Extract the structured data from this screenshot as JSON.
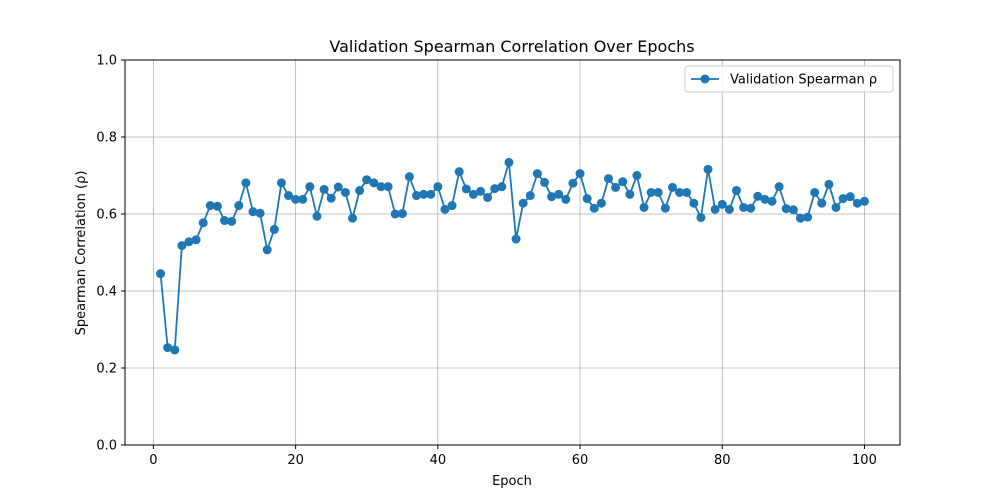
{
  "chart_data": {
    "type": "line",
    "title": "Validation Spearman Correlation Over Epochs",
    "xlabel": "Epoch",
    "ylabel": "Spearman Correlation (ρ)",
    "xlim": [
      -4,
      105
    ],
    "ylim": [
      0.0,
      1.0
    ],
    "x_ticks": [
      0,
      20,
      40,
      60,
      80,
      100
    ],
    "x_tick_labels": [
      "0",
      "20",
      "40",
      "60",
      "80",
      "100"
    ],
    "y_ticks": [
      0.0,
      0.2,
      0.4,
      0.6,
      0.8,
      1.0
    ],
    "y_tick_labels": [
      "0.0",
      "0.2",
      "0.4",
      "0.6",
      "0.8",
      "1.0"
    ],
    "grid": true,
    "legend_position": "top-right",
    "series": [
      {
        "name": "Validation Spearman ρ",
        "color": "#1f77b4",
        "marker": "circle",
        "x": [
          1,
          2,
          3,
          4,
          5,
          6,
          7,
          8,
          9,
          10,
          11,
          12,
          13,
          14,
          15,
          16,
          17,
          18,
          19,
          20,
          21,
          22,
          23,
          24,
          25,
          26,
          27,
          28,
          29,
          30,
          31,
          32,
          33,
          34,
          35,
          36,
          37,
          38,
          39,
          40,
          41,
          42,
          43,
          44,
          45,
          46,
          47,
          48,
          49,
          50,
          51,
          52,
          53,
          54,
          55,
          56,
          57,
          58,
          59,
          60,
          61,
          62,
          63,
          64,
          65,
          66,
          67,
          68,
          69,
          70,
          71,
          72,
          73,
          74,
          75,
          76,
          77,
          78,
          79,
          80,
          81,
          82,
          83,
          84,
          85,
          86,
          87,
          88,
          89,
          90,
          91,
          92,
          93,
          94,
          95,
          96,
          97,
          98,
          99,
          100
        ],
        "values": [
          0.445,
          0.253,
          0.247,
          0.518,
          0.528,
          0.533,
          0.577,
          0.622,
          0.62,
          0.583,
          0.581,
          0.622,
          0.681,
          0.606,
          0.602,
          0.507,
          0.56,
          0.681,
          0.648,
          0.638,
          0.638,
          0.671,
          0.594,
          0.664,
          0.641,
          0.67,
          0.656,
          0.589,
          0.661,
          0.689,
          0.681,
          0.671,
          0.671,
          0.6,
          0.601,
          0.697,
          0.648,
          0.651,
          0.651,
          0.671,
          0.612,
          0.622,
          0.71,
          0.665,
          0.651,
          0.659,
          0.643,
          0.666,
          0.671,
          0.734,
          0.535,
          0.628,
          0.648,
          0.705,
          0.682,
          0.645,
          0.651,
          0.638,
          0.68,
          0.705,
          0.64,
          0.615,
          0.628,
          0.692,
          0.669,
          0.684,
          0.651,
          0.7,
          0.617,
          0.656,
          0.656,
          0.615,
          0.669,
          0.656,
          0.656,
          0.628,
          0.591,
          0.716,
          0.612,
          0.625,
          0.612,
          0.661,
          0.617,
          0.615,
          0.646,
          0.638,
          0.633,
          0.671,
          0.614,
          0.611,
          0.589,
          0.592,
          0.656,
          0.628,
          0.677,
          0.617,
          0.64,
          0.645,
          0.628,
          0.633
        ]
      }
    ]
  }
}
